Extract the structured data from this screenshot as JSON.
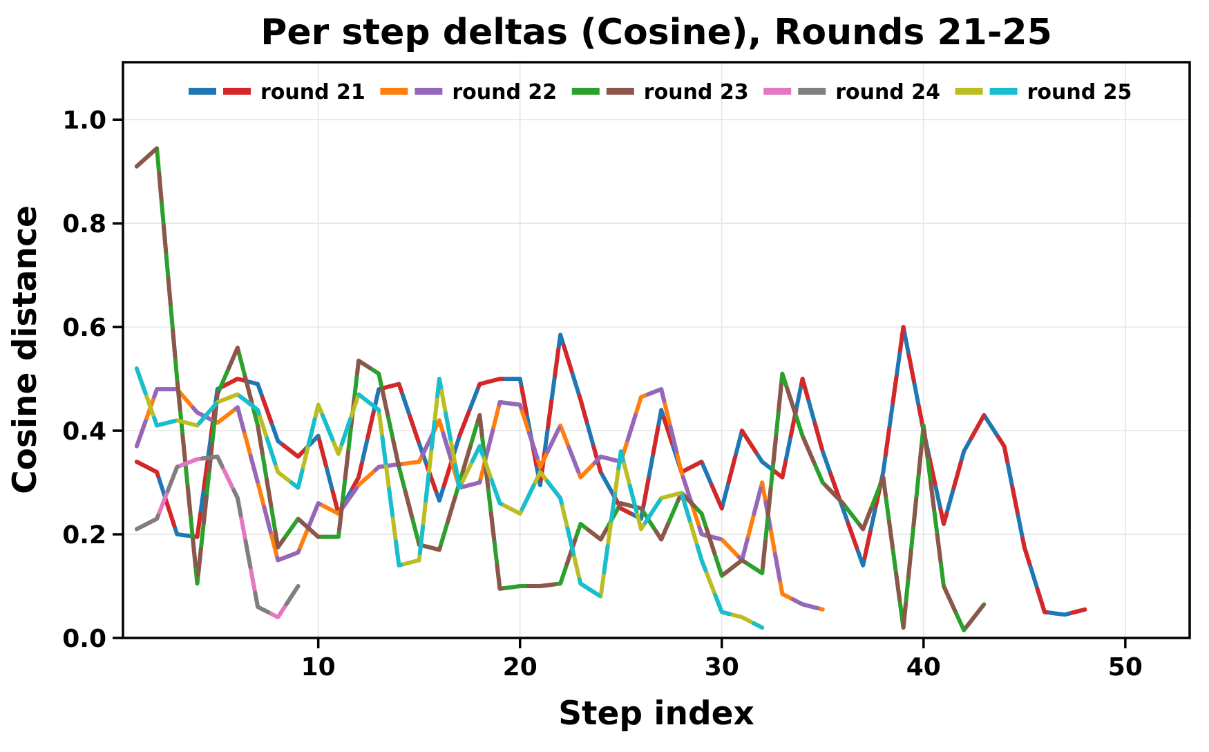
{
  "chart_data": {
    "type": "line",
    "title": "Per step deltas (Cosine), Rounds 21-25",
    "xlabel": "Step index",
    "ylabel": "Cosine distance",
    "x_ticks": [
      10,
      20,
      30,
      40,
      50
    ],
    "x_tick_labels": [
      "10",
      "20",
      "30",
      "40",
      "50"
    ],
    "y_ticks": [
      0.0,
      0.2,
      0.4,
      0.6,
      0.8,
      1.0
    ],
    "y_tick_labels": [
      "0.0",
      "0.2",
      "0.4",
      "0.6",
      "0.8",
      "1.0"
    ],
    "xlim": [
      0.32,
      53.19
    ],
    "ylim": [
      0,
      1.111
    ],
    "grid": true,
    "legend_position": "top-center-inside",
    "line_width": 6,
    "dash_length": 38,
    "background_color": "#ffffff",
    "grid_color": "#e5e5e5",
    "series": [
      {
        "name": "round 21",
        "colors": [
          "#1f77b4",
          "#d62728"
        ],
        "x_start": 1,
        "values": [
          0.34,
          0.32,
          0.2,
          0.195,
          0.48,
          0.5,
          0.49,
          0.38,
          0.35,
          0.39,
          0.24,
          0.31,
          0.48,
          0.49,
          0.375,
          0.265,
          0.39,
          0.49,
          0.5,
          0.5,
          0.295,
          0.585,
          0.46,
          0.32,
          0.25,
          0.23,
          0.44,
          0.32,
          0.34,
          0.25,
          0.4,
          0.34,
          0.31,
          0.5,
          0.36,
          0.25,
          0.14,
          0.32,
          0.6,
          0.4,
          0.22,
          0.36,
          0.43,
          0.37,
          0.175,
          0.05,
          0.045,
          0.055
        ]
      },
      {
        "name": "round 22",
        "colors": [
          "#ff7f0e",
          "#9467bd"
        ],
        "x_start": 1,
        "values": [
          0.37,
          0.48,
          0.48,
          0.435,
          0.415,
          0.445,
          0.3,
          0.15,
          0.165,
          0.26,
          0.24,
          0.295,
          0.33,
          0.335,
          0.34,
          0.42,
          0.29,
          0.3,
          0.455,
          0.45,
          0.33,
          0.41,
          0.31,
          0.35,
          0.34,
          0.465,
          0.48,
          0.32,
          0.2,
          0.19,
          0.15,
          0.3,
          0.085,
          0.065,
          0.055
        ]
      },
      {
        "name": "round 23",
        "colors": [
          "#2ca02c",
          "#8c564b"
        ],
        "x_start": 1,
        "values": [
          0.91,
          0.945,
          0.5,
          0.105,
          0.47,
          0.56,
          0.41,
          0.175,
          0.23,
          0.195,
          0.195,
          0.535,
          0.51,
          0.33,
          0.18,
          0.17,
          0.3,
          0.43,
          0.095,
          0.1,
          0.1,
          0.105,
          0.22,
          0.19,
          0.26,
          0.25,
          0.19,
          0.28,
          0.24,
          0.12,
          0.15,
          0.125,
          0.51,
          0.39,
          0.3,
          0.26,
          0.21,
          0.31,
          0.02,
          0.41,
          0.1,
          0.015,
          0.065
        ]
      },
      {
        "name": "round 24",
        "colors": [
          "#e377c2",
          "#7f7f7f"
        ],
        "x_start": 1,
        "values": [
          0.21,
          0.23,
          0.33,
          0.345,
          0.35,
          0.27,
          0.06,
          0.04,
          0.1
        ]
      },
      {
        "name": "round 25",
        "colors": [
          "#bcbd22",
          "#17becf"
        ],
        "x_start": 1,
        "values": [
          0.52,
          0.41,
          0.42,
          0.41,
          0.455,
          0.47,
          0.44,
          0.32,
          0.29,
          0.45,
          0.355,
          0.47,
          0.44,
          0.14,
          0.15,
          0.5,
          0.29,
          0.37,
          0.26,
          0.24,
          0.32,
          0.27,
          0.105,
          0.08,
          0.36,
          0.21,
          0.27,
          0.28,
          0.15,
          0.05,
          0.04,
          0.02
        ]
      }
    ]
  }
}
